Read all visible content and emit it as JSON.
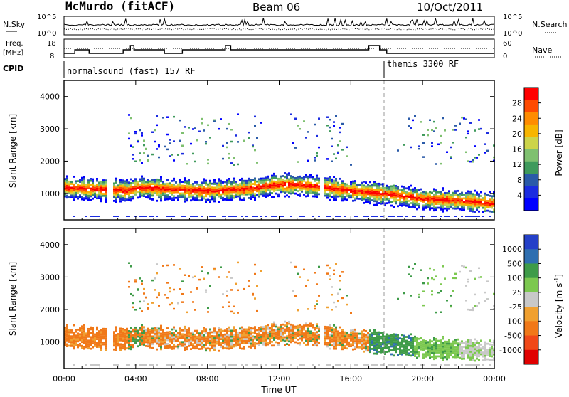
{
  "header": {
    "station": "McMurdo (fitACF)",
    "beam": "Beam 06",
    "date": "10/Oct/2011"
  },
  "noise_panel": {
    "left_label": "N.Sky",
    "right_label": "N.Search",
    "tick_top_left": "10^5",
    "tick_bottom_left": "10^0",
    "tick_top_right": "10^5",
    "tick_bottom_right": "10^0"
  },
  "freq_panel": {
    "left_label_1": "Freq.",
    "left_label_2": "[MHz]",
    "right_label": "Nave",
    "tick_left_top": "18",
    "tick_left_bottom": "8",
    "tick_right_top": "60",
    "tick_right_bottom": "0"
  },
  "cpid_panel": {
    "label": "CPID",
    "mode_1": "normalsound (fast) 157 RF",
    "mode_2": "themis 3300 RF"
  },
  "power_colorbar": {
    "label": "Power [dB]",
    "ticks": [
      "28",
      "24",
      "20",
      "16",
      "12",
      "8",
      "4"
    ],
    "colors": [
      "#ff0000",
      "#ff4a00",
      "#ff8c00",
      "#f7b500",
      "#ccd44a",
      "#7fc070",
      "#3f9a5c",
      "#2a5aa8",
      "#1b2ce0",
      "#0000ff"
    ]
  },
  "velocity_colorbar": {
    "label": "Velocity [m s",
    "label_sup": "-1",
    "label_end": "]",
    "ticks": [
      "1000",
      "500",
      "100",
      "25",
      "-25",
      "-100",
      "-500",
      "-1000"
    ],
    "colors": [
      "#2440c8",
      "#2f6fb0",
      "#3e9b48",
      "#7cc850",
      "#c8c8c8",
      "#f0a030",
      "#f07818",
      "#f04818",
      "#e00000"
    ]
  },
  "chart_data": [
    {
      "type": "heatmap",
      "title": "Power",
      "ylabel": "Slant Range [km]",
      "yticks": [
        "1000",
        "2000",
        "3000",
        "4000"
      ],
      "ylim": [
        180,
        4500
      ],
      "xlim": [
        0,
        24
      ],
      "xticks": [
        "00:00",
        "04:00",
        "08:00",
        "12:00",
        "16:00",
        "20:00",
        "00:00"
      ],
      "xlabel": "Time UT",
      "main_band_center_km": [
        [
          0,
          1150
        ],
        [
          2,
          1100
        ],
        [
          3.5,
          1050
        ],
        [
          4,
          1150
        ],
        [
          6,
          1100
        ],
        [
          8,
          1050
        ],
        [
          10,
          1100
        ],
        [
          12,
          1250
        ],
        [
          14,
          1200
        ],
        [
          16,
          1050
        ],
        [
          18,
          950
        ],
        [
          20,
          800
        ],
        [
          22,
          750
        ],
        [
          24,
          650
        ]
      ],
      "peak_power_dB": 30
    },
    {
      "type": "heatmap",
      "title": "Velocity",
      "ylabel": "Slant Range [km]",
      "yticks": [
        "1000",
        "2000",
        "3000",
        "4000"
      ],
      "ylim": [
        180,
        4500
      ],
      "xlim": [
        0,
        24
      ],
      "xticks": [
        "00:00",
        "04:00",
        "08:00",
        "12:00",
        "16:00",
        "20:00",
        "00:00"
      ],
      "xlabel": "Time UT",
      "dominant_velocity_ranges_m_s": [
        [
          0,
          17,
          "-100 to -500"
        ],
        [
          17,
          19.5,
          "100 to 500"
        ],
        [
          19.5,
          22,
          "25 to 100"
        ],
        [
          22,
          24,
          "-25 to 25"
        ]
      ]
    }
  ],
  "axis": {
    "xlabel": "Time UT",
    "xticks": [
      "00:00",
      "04:00",
      "08:00",
      "12:00",
      "16:00",
      "20:00",
      "00:00"
    ],
    "ylabel": "Slant Range [km]",
    "yticks": [
      "1000",
      "2000",
      "3000",
      "4000"
    ]
  }
}
